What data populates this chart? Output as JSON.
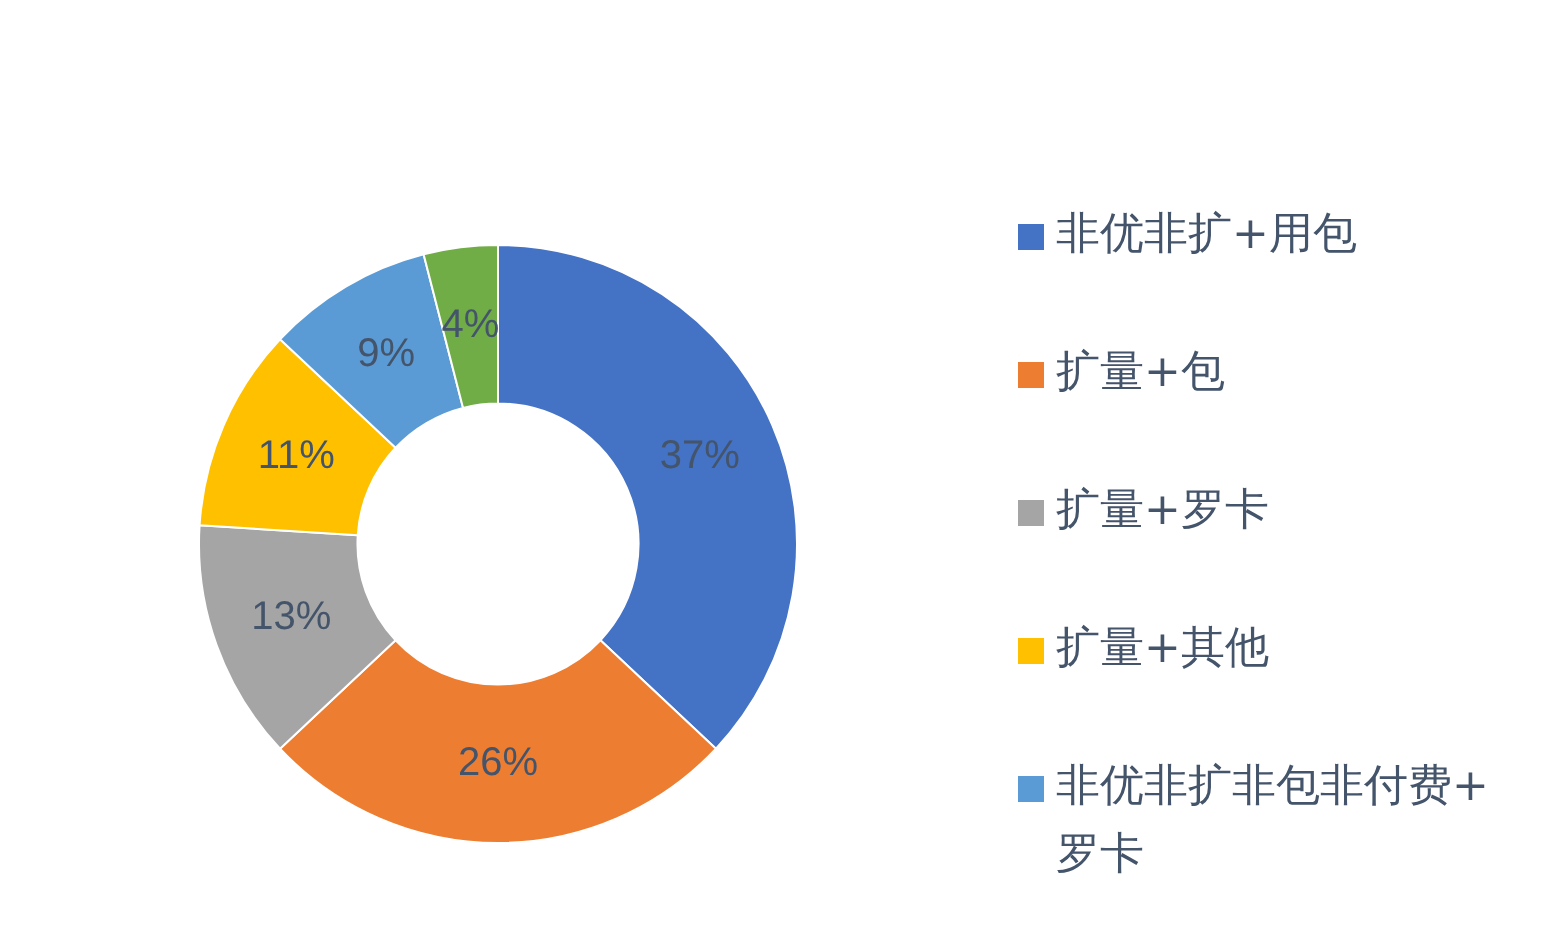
{
  "chart_data": {
    "type": "donut",
    "categories": [
      "非优非扩+用包",
      "扩量+包",
      "扩量+罗卡",
      "扩量+其他",
      "非优非扩非包非付费+罗卡",
      null
    ],
    "values": [
      37,
      26,
      13,
      11,
      9,
      4
    ],
    "colors": [
      "#4472c4",
      "#ed7d31",
      "#a5a5a5",
      "#ffc000",
      "#5b9bd5",
      "#70ad47"
    ],
    "value_labels": [
      "37%",
      "26%",
      "13%",
      "11%",
      "9%",
      "4%"
    ],
    "legend": "right"
  }
}
